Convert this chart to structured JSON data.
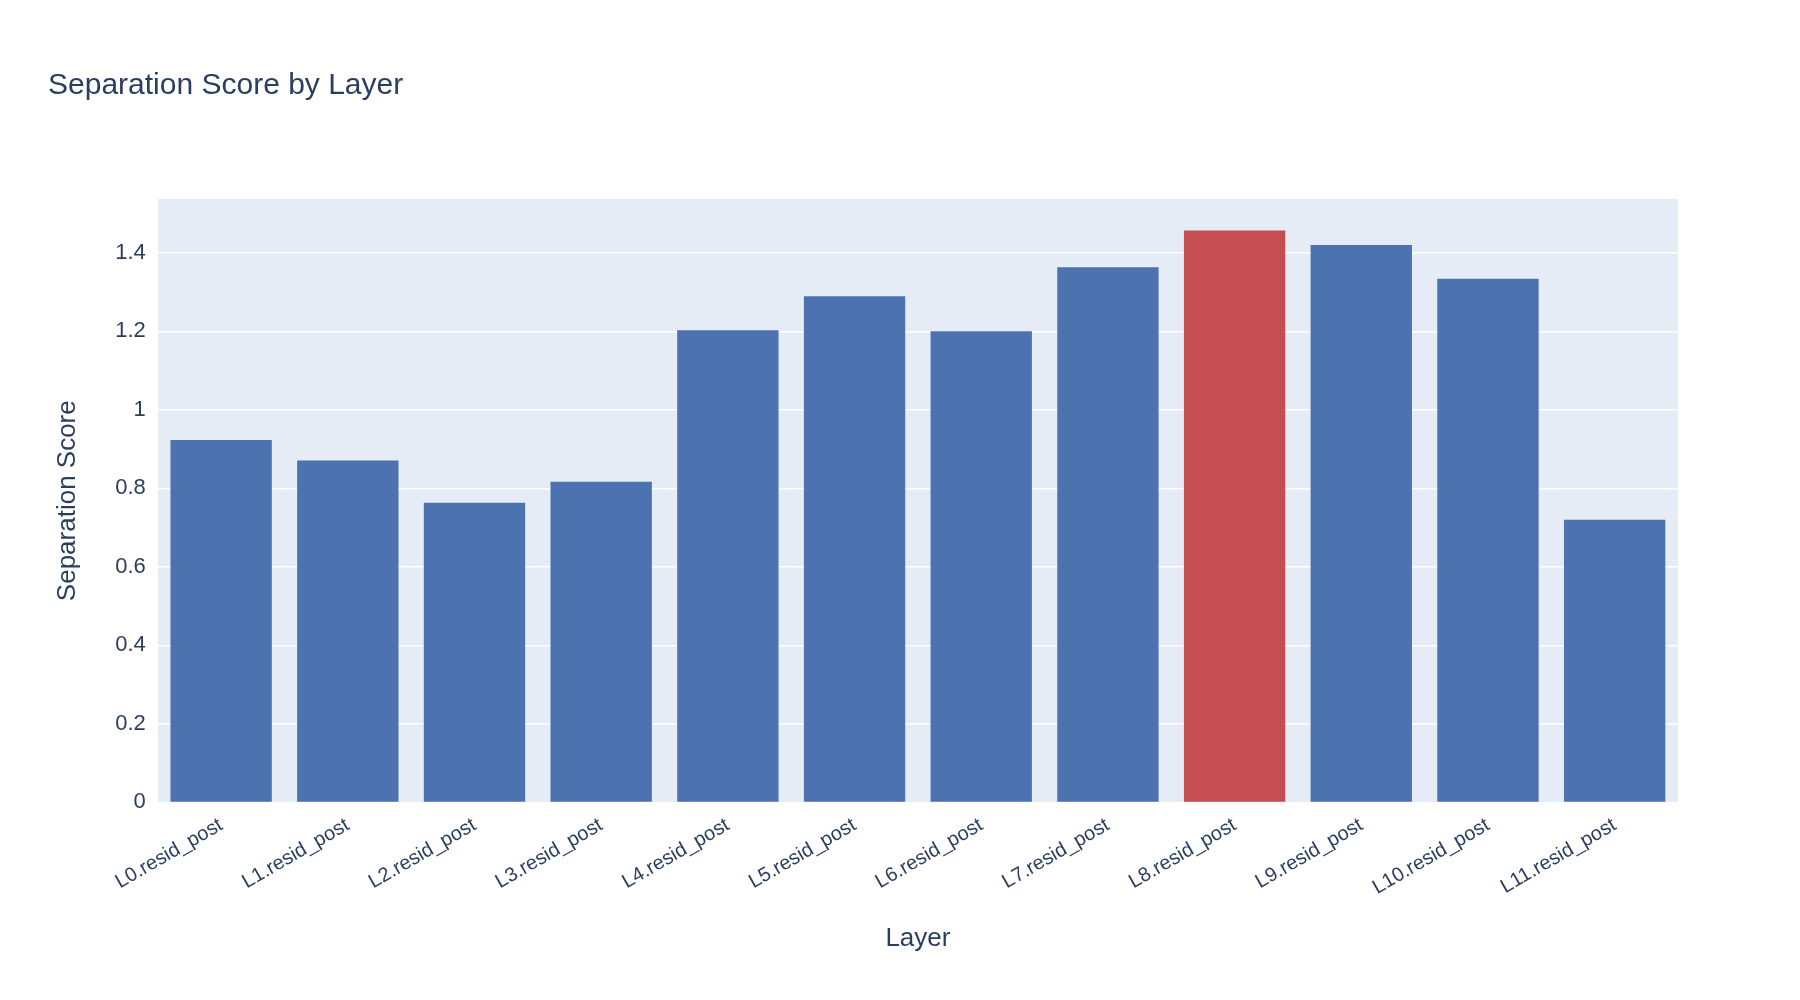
{
  "chart_data": {
    "type": "bar",
    "title": "Separation Score by Layer",
    "xlabel": "Layer",
    "ylabel": "Separation Score",
    "categories": [
      "L0.resid_post",
      "L1.resid_post",
      "L2.resid_post",
      "L3.resid_post",
      "L4.resid_post",
      "L5.resid_post",
      "L6.resid_post",
      "L7.resid_post",
      "L8.resid_post",
      "L9.resid_post",
      "L10.resid_post",
      "L11.resid_post"
    ],
    "values": [
      0.923,
      0.871,
      0.763,
      0.817,
      1.203,
      1.289,
      1.2,
      1.363,
      1.457,
      1.42,
      1.334,
      0.72
    ],
    "colors": [
      "#4c72b0",
      "#4c72b0",
      "#4c72b0",
      "#4c72b0",
      "#4c72b0",
      "#4c72b0",
      "#4c72b0",
      "#4c72b0",
      "#c44e52",
      "#4c72b0",
      "#4c72b0",
      "#4c72b0"
    ],
    "ylim": [
      0,
      1.537
    ],
    "yticks": [
      0,
      0.2,
      0.4,
      0.6,
      0.8,
      {
        "value": 1,
        "label": "1"
      },
      1.2,
      1.4
    ],
    "grid": "y",
    "legend": false
  }
}
